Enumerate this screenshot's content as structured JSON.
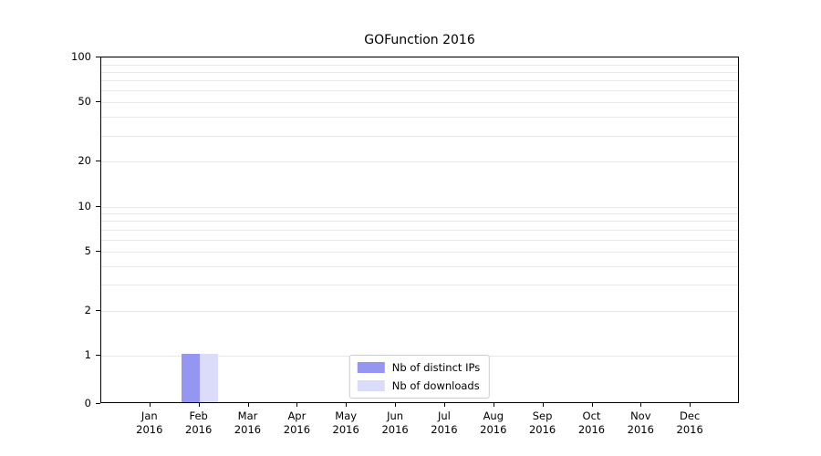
{
  "chart_data": {
    "type": "bar",
    "title": "GOFunction 2016",
    "categories": [
      "Jan",
      "Feb",
      "Mar",
      "Apr",
      "May",
      "Jun",
      "Jul",
      "Aug",
      "Sep",
      "Oct",
      "Nov",
      "Dec"
    ],
    "year_label": "2016",
    "series": [
      {
        "name": "Nb of distinct IPs",
        "color": "#9595f2",
        "values": [
          0,
          1,
          0,
          0,
          0,
          0,
          0,
          0,
          0,
          0,
          0,
          0
        ]
      },
      {
        "name": "Nb of downloads",
        "color": "#dbdbfa",
        "values": [
          0,
          1,
          0,
          0,
          0,
          0,
          0,
          0,
          0,
          0,
          0,
          0
        ]
      }
    ],
    "yscale": "symlog",
    "ylim": [
      0,
      100
    ],
    "yticks": [
      0,
      1,
      2,
      5,
      10,
      20,
      50,
      100
    ],
    "grid": "horizontal",
    "gridline_color": "#e8e8e8",
    "legend_position": "lower center"
  }
}
